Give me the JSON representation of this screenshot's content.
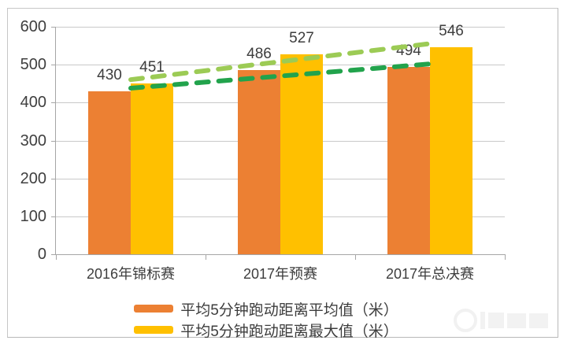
{
  "chart_data": {
    "type": "bar",
    "categories": [
      "2016年锦标赛",
      "2017年预赛",
      "2017年总决赛"
    ],
    "series": [
      {
        "name": "平均5分钟跑动距离平均值（米）",
        "values": [
          430,
          486,
          494
        ],
        "color": "#EC8033",
        "trend_color": "#22A34C"
      },
      {
        "name": "平均5分钟跑动距离最大值（米）",
        "values": [
          451,
          527,
          546
        ],
        "color": "#FFC000",
        "trend_color": "#9CCB55"
      }
    ],
    "title": "",
    "xlabel": "",
    "ylabel": "",
    "ylim": [
      0,
      600
    ],
    "yticks": [
      0,
      100,
      200,
      300,
      400,
      500,
      600
    ],
    "grid": true,
    "legend_position": "bottom",
    "trendlines": "linear dashed trendline per series"
  }
}
